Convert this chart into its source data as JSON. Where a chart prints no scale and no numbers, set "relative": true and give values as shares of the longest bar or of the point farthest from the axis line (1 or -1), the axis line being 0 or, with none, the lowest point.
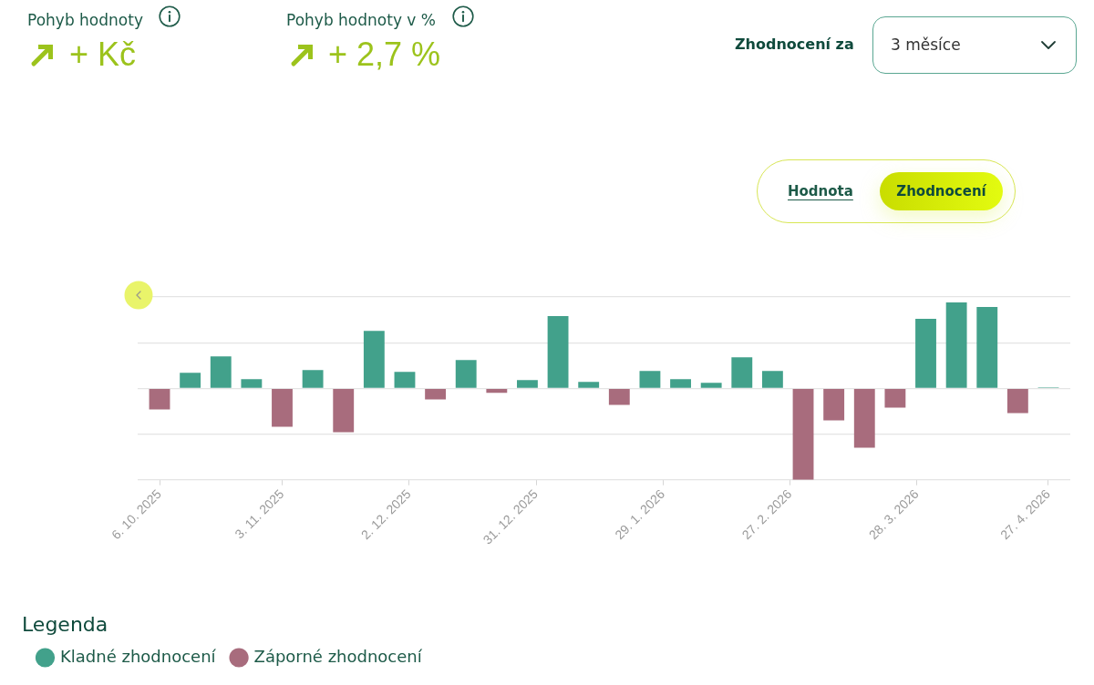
{
  "chart_data": {
    "type": "bar",
    "relative": true,
    "x": [
      "2025-10-06",
      "2025-10-13",
      "2025-10-20",
      "2025-10-27",
      "2025-11-03",
      "2025-11-10",
      "2025-11-17",
      "2025-11-24",
      "2025-12-01",
      "2025-12-08",
      "2025-12-15",
      "2025-12-22",
      "2025-12-29",
      "2026-01-05",
      "2026-01-12",
      "2026-01-19",
      "2026-01-26",
      "2026-02-02",
      "2026-02-09",
      "2026-02-16",
      "2026-02-23",
      "2026-03-02",
      "2026-03-09",
      "2026-03-16",
      "2026-03-23",
      "2026-03-30",
      "2026-04-06",
      "2026-04-13",
      "2026-04-20",
      "2026-04-27"
    ],
    "xlim": [
      "2025-10-01",
      "2026-05-02"
    ],
    "xticks": [
      {
        "value": "2025-10-06",
        "label": "6. 10. 2025"
      },
      {
        "value": "2025-11-03",
        "label": "3. 11. 2025"
      },
      {
        "value": "2025-12-02",
        "label": "2. 12. 2025"
      },
      {
        "value": "2025-12-31",
        "label": "31. 12. 2025"
      },
      {
        "value": "2026-01-29",
        "label": "29. 1. 2026"
      },
      {
        "value": "2026-02-27",
        "label": "27. 2. 2026"
      },
      {
        "value": "2026-03-28",
        "label": "28. 3. 2026"
      },
      {
        "value": "2026-04-27",
        "label": "27. 4. 2026"
      }
    ],
    "series": [
      {
        "name": "Kladné zhodnocení",
        "color": "#42a18b",
        "values": [
          null,
          0.17,
          0.35,
          0.1,
          null,
          0.2,
          null,
          0.63,
          0.18,
          null,
          0.31,
          null,
          0.09,
          0.79,
          0.07,
          null,
          0.19,
          0.1,
          0.06,
          0.34,
          0.19,
          null,
          null,
          null,
          null,
          0.76,
          0.94,
          0.89,
          null,
          0.01
        ]
      },
      {
        "name": "Záporné zhodnocení",
        "color": "#a86c7d",
        "values": [
          -0.23,
          null,
          null,
          null,
          -0.42,
          null,
          -0.48,
          null,
          null,
          -0.12,
          null,
          -0.05,
          null,
          null,
          null,
          -0.18,
          null,
          null,
          null,
          null,
          null,
          -1,
          -0.35,
          -0.65,
          -0.21,
          null,
          null,
          null,
          -0.27,
          null
        ]
      }
    ],
    "grid": "y",
    "legend": "bottom left",
    "legend_title": "Legenda",
    "annotations": [
      "Pohyb hodnoty",
      "+ Kč",
      "Pohyb hodnoty v %",
      "+ 2,7 %",
      "Zhodnocení za",
      "3 měsíce",
      "Hodnota",
      "Zhodnocení"
    ]
  }
}
